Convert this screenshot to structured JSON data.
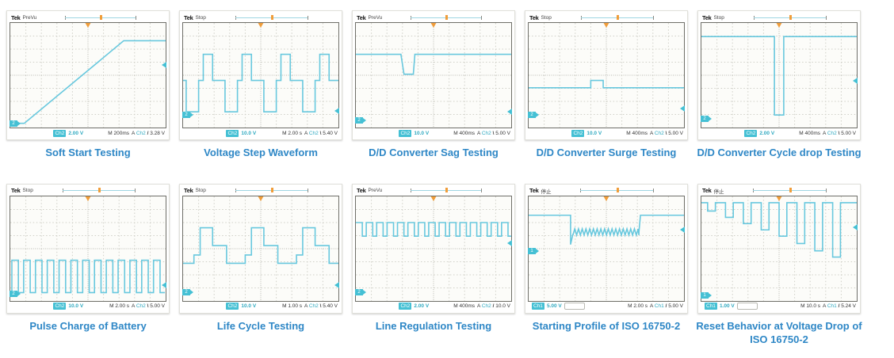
{
  "colors": {
    "trace": "#68c8de",
    "caption_blue": "#2e87c6",
    "marker_orange": "#f09d3a",
    "channel_cyan": "#45c0d4",
    "readout_teal": "#2fa9c0"
  },
  "chart_data": [
    {
      "type": "line",
      "title": "Soft Start Testing",
      "brand": "Tek",
      "acq_state": "PreVu",
      "channel": "Ch2",
      "channel_digit": "2",
      "volts_per_div": "2.00 V",
      "timebase": "M 200ms",
      "trigger": {
        "prefix": "A",
        "source": "Ch2",
        "slope": "/",
        "level": "3.28 V"
      },
      "has_aux_box": false,
      "markers": {
        "ground_y": 96,
        "trig_y": 40
      },
      "x_range": [
        0,
        100
      ],
      "y_range": [
        0,
        100
      ],
      "grid": "10x8 divisions",
      "trace": [
        {
          "t": "steps",
          "pts": [
            [
              0,
              96
            ],
            [
              9,
              96
            ],
            [
              73,
              17
            ],
            [
              100,
              17
            ]
          ]
        }
      ]
    },
    {
      "type": "line",
      "title": "Voltage Step Waveform",
      "brand": "Tek",
      "acq_state": "Stop",
      "channel": "Ch2",
      "channel_digit": "2",
      "volts_per_div": "10.0 V",
      "timebase": "M 2.00 s",
      "trigger": {
        "prefix": "A",
        "source": "Ch2",
        "slope": "\\",
        "level": "5.40 V"
      },
      "has_aux_box": false,
      "markers": {
        "ground_y": 88,
        "trig_y": 84
      },
      "x_range": [
        0,
        100
      ],
      "y_range": [
        0,
        100
      ],
      "grid": "10x8 divisions",
      "trace": [
        {
          "t": "steps",
          "pts": [
            [
              0,
              55
            ],
            [
              2,
              55
            ],
            [
              2,
              85
            ],
            [
              10,
              85
            ],
            [
              10,
              55
            ],
            [
              13,
              55
            ],
            [
              13,
              30
            ],
            [
              19,
              30
            ],
            [
              19,
              55
            ],
            [
              27,
              55
            ],
            [
              27,
              85
            ],
            [
              35,
              85
            ],
            [
              35,
              55
            ],
            [
              38,
              55
            ],
            [
              38,
              30
            ],
            [
              44,
              30
            ],
            [
              44,
              55
            ],
            [
              52,
              55
            ],
            [
              52,
              85
            ],
            [
              60,
              85
            ],
            [
              60,
              55
            ],
            [
              63,
              55
            ],
            [
              63,
              30
            ],
            [
              69,
              30
            ],
            [
              69,
              55
            ],
            [
              77,
              55
            ],
            [
              77,
              85
            ],
            [
              85,
              85
            ],
            [
              85,
              55
            ],
            [
              88,
              55
            ],
            [
              88,
              30
            ],
            [
              94,
              30
            ],
            [
              94,
              55
            ],
            [
              100,
              55
            ]
          ]
        }
      ]
    },
    {
      "type": "line",
      "title": "D/D Converter Sag Testing",
      "brand": "Tek",
      "acq_state": "PreVu",
      "channel": "Ch2",
      "channel_digit": "2",
      "volts_per_div": "10.0 V",
      "timebase": "M 400ms",
      "trigger": {
        "prefix": "A",
        "source": "Ch2",
        "slope": "\\",
        "level": "5.00 V"
      },
      "has_aux_box": false,
      "markers": {
        "ground_y": 93,
        "trig_y": 85
      },
      "x_range": [
        0,
        100
      ],
      "y_range": [
        0,
        100
      ],
      "grid": "10x8 divisions",
      "trace": [
        {
          "t": "steps",
          "pts": [
            [
              0,
              30
            ],
            [
              29,
              30
            ],
            [
              31,
              49
            ],
            [
              37,
              49
            ],
            [
              38,
              30
            ],
            [
              100,
              30
            ]
          ]
        }
      ]
    },
    {
      "type": "line",
      "title": "D/D Converter Surge Testing",
      "brand": "Tek",
      "acq_state": "Stop",
      "channel": "Ch2",
      "channel_digit": "2",
      "volts_per_div": "10.0 V",
      "timebase": "M 400ms",
      "trigger": {
        "prefix": "A",
        "source": "Ch2",
        "slope": "\\",
        "level": "5.00 V"
      },
      "has_aux_box": false,
      "markers": {
        "ground_y": 88,
        "trig_y": 82
      },
      "x_range": [
        0,
        100
      ],
      "y_range": [
        0,
        100
      ],
      "grid": "10x8 divisions",
      "trace": [
        {
          "t": "steps",
          "pts": [
            [
              0,
              62
            ],
            [
              40,
              62
            ],
            [
              40,
              55
            ],
            [
              48,
              55
            ],
            [
              48,
              62
            ],
            [
              100,
              62
            ]
          ]
        }
      ]
    },
    {
      "type": "line",
      "title": "D/D Converter Cycle drop Testing",
      "brand": "Tek",
      "acq_state": "Stop",
      "channel": "Ch2",
      "channel_digit": "2",
      "volts_per_div": "2.00 V",
      "timebase": "M 400ms",
      "trigger": {
        "prefix": "A",
        "source": "Ch2",
        "slope": "\\",
        "level": "5.00 V"
      },
      "has_aux_box": false,
      "markers": {
        "ground_y": 92,
        "trig_y": 55
      },
      "x_range": [
        0,
        100
      ],
      "y_range": [
        0,
        100
      ],
      "grid": "10x8 divisions",
      "trace": [
        {
          "t": "steps",
          "pts": [
            [
              0,
              13
            ],
            [
              47,
              13
            ],
            [
              47,
              88
            ],
            [
              53,
              88
            ],
            [
              53,
              13
            ],
            [
              100,
              13
            ]
          ]
        }
      ]
    },
    {
      "type": "line",
      "title": "Pulse Charge of Battery",
      "brand": "Tek",
      "acq_state": "Stop",
      "channel": "Ch2",
      "channel_digit": "2",
      "volts_per_div": "10.0 V",
      "timebase": "M 2.00 s",
      "trigger": {
        "prefix": "A",
        "source": "Ch2",
        "slope": "\\",
        "level": "5.00 V"
      },
      "has_aux_box": false,
      "markers": {
        "ground_y": 93,
        "trig_y": 85
      },
      "x_range": [
        0,
        100
      ],
      "y_range": [
        0,
        100
      ],
      "grid": "10x8 divisions",
      "trace": [
        {
          "t": "steps",
          "pts": [
            [
              0,
              92
            ],
            [
              1,
              92
            ]
          ]
        },
        {
          "t": "square",
          "x0": 1,
          "x1": 99.5,
          "period": 7.6,
          "duty": 0.55,
          "yHigh": 61,
          "yLow": 92
        }
      ]
    },
    {
      "type": "line",
      "title": "Life Cycle Testing",
      "brand": "Tek",
      "acq_state": "Stop",
      "channel": "Ch2",
      "channel_digit": "2",
      "volts_per_div": "10.0 V",
      "timebase": "M 1.00 s",
      "trigger": {
        "prefix": "A",
        "source": "Ch2",
        "slope": "\\",
        "level": "5.40 V"
      },
      "has_aux_box": false,
      "markers": {
        "ground_y": 92,
        "trig_y": 85
      },
      "x_range": [
        0,
        100
      ],
      "y_range": [
        0,
        100
      ],
      "grid": "10x8 divisions",
      "trace": [
        {
          "t": "steps",
          "pts": [
            [
              0,
              64
            ],
            [
              7,
              64
            ],
            [
              7,
              56
            ],
            [
              11,
              56
            ],
            [
              11,
              30
            ],
            [
              19,
              30
            ],
            [
              19,
              47
            ],
            [
              28,
              47
            ],
            [
              28,
              64
            ],
            [
              40,
              64
            ],
            [
              40,
              56
            ],
            [
              44,
              56
            ],
            [
              44,
              30
            ],
            [
              52,
              30
            ],
            [
              52,
              47
            ],
            [
              61,
              47
            ],
            [
              61,
              64
            ],
            [
              73,
              64
            ],
            [
              73,
              56
            ],
            [
              77,
              56
            ],
            [
              77,
              30
            ],
            [
              85,
              30
            ],
            [
              85,
              47
            ],
            [
              94,
              47
            ],
            [
              94,
              64
            ],
            [
              100,
              64
            ]
          ]
        }
      ]
    },
    {
      "type": "line",
      "title": "Line Regulation Testing",
      "brand": "Tek",
      "acq_state": "PreVu",
      "channel": "Ch2",
      "channel_digit": "2",
      "volts_per_div": "2.00 V",
      "timebase": "M 400ms",
      "trigger": {
        "prefix": "A",
        "source": "Ch2",
        "slope": "/",
        "level": "10.0 V"
      },
      "has_aux_box": false,
      "markers": {
        "ground_y": 92,
        "trig_y": 45
      },
      "x_range": [
        0,
        100
      ],
      "y_range": [
        0,
        100
      ],
      "grid": "10x8 divisions",
      "trace": [
        {
          "t": "square",
          "x0": 0,
          "x1": 100,
          "period": 6.7,
          "duty": 0.62,
          "yHigh": 25,
          "yLow": 38
        }
      ]
    },
    {
      "type": "line",
      "title": "Starting Profile of ISO 16750-2",
      "brand": "Tek",
      "acq_state": "停止",
      "channel": "Ch1",
      "channel_digit": "1",
      "volts_per_div": "5.00 V",
      "timebase": "M 2.00 s",
      "trigger": {
        "prefix": "A",
        "source": "Ch1",
        "slope": "/",
        "level": "5.00 V"
      },
      "has_aux_box": true,
      "markers": {
        "ground_y": 52,
        "trig_y": 32
      },
      "x_range": [
        0,
        100
      ],
      "y_range": [
        0,
        100
      ],
      "grid": "10x8 divisions",
      "trace": [
        {
          "t": "steps",
          "pts": [
            [
              0,
              18
            ],
            [
              27,
              18
            ],
            [
              27,
              46
            ],
            [
              28.5,
              36
            ]
          ]
        },
        {
          "t": "saw",
          "x0": 28.5,
          "x1": 71,
          "period": 2.4,
          "yTop": 31,
          "yBot": 37
        },
        {
          "t": "steps",
          "pts": [
            [
              71,
              34
            ],
            [
              72,
              18
            ],
            [
              100,
              18
            ]
          ]
        }
      ]
    },
    {
      "type": "line",
      "title": "Reset Behavior at Voltage Drop of ISO 16750-2",
      "brand": "Tek",
      "acq_state": "停止",
      "channel": "Ch1",
      "channel_digit": "1",
      "volts_per_div": "1.00 V",
      "timebase": "M 10.0 s",
      "trigger": {
        "prefix": "A",
        "source": "Ch1",
        "slope": "/",
        "level": "5.24 V"
      },
      "has_aux_box": true,
      "markers": {
        "ground_y": 95,
        "trig_y": 30
      },
      "x_range": [
        0,
        100
      ],
      "y_range": [
        0,
        100
      ],
      "grid": "10x8 divisions",
      "trace": [
        {
          "t": "steps",
          "pts": [
            [
              0,
              6
            ],
            [
              4,
              6
            ],
            [
              4,
              14
            ],
            [
              9,
              14
            ],
            [
              9,
              6
            ],
            [
              15.5,
              6
            ],
            [
              15.5,
              20
            ],
            [
              20.5,
              20
            ],
            [
              20.5,
              6
            ],
            [
              27,
              6
            ],
            [
              27,
              26
            ],
            [
              32,
              26
            ],
            [
              32,
              6
            ],
            [
              38.5,
              6
            ],
            [
              38.5,
              32
            ],
            [
              43.5,
              32
            ],
            [
              43.5,
              6
            ],
            [
              50,
              6
            ],
            [
              50,
              38
            ],
            [
              55,
              38
            ],
            [
              55,
              6
            ],
            [
              61.5,
              6
            ],
            [
              61.5,
              45
            ],
            [
              66.5,
              45
            ],
            [
              66.5,
              6
            ],
            [
              73,
              6
            ],
            [
              73,
              52
            ],
            [
              78,
              52
            ],
            [
              78,
              6
            ],
            [
              84.5,
              6
            ],
            [
              84.5,
              58
            ],
            [
              89.5,
              58
            ],
            [
              89.5,
              6
            ],
            [
              100,
              6
            ]
          ]
        }
      ]
    }
  ]
}
